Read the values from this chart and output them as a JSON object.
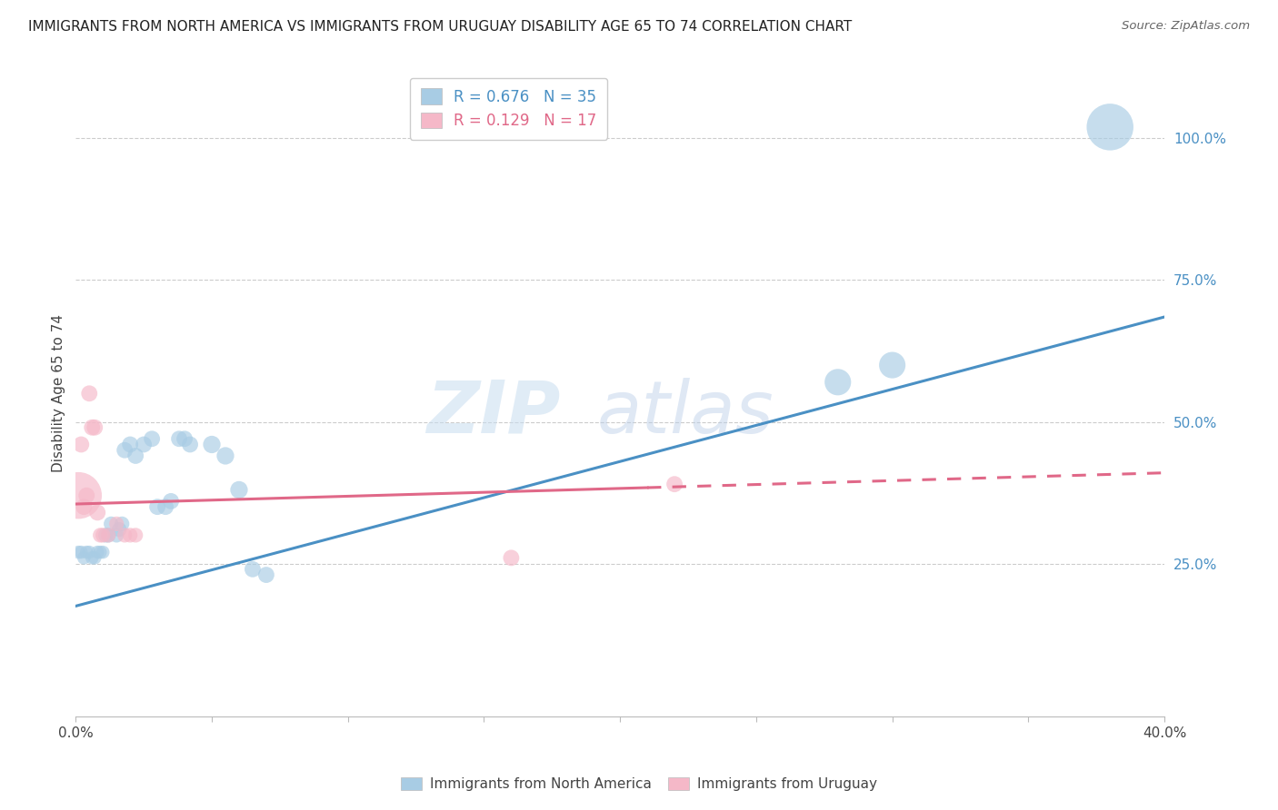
{
  "title": "IMMIGRANTS FROM NORTH AMERICA VS IMMIGRANTS FROM URUGUAY DISABILITY AGE 65 TO 74 CORRELATION CHART",
  "source": "Source: ZipAtlas.com",
  "ylabel": "Disability Age 65 to 74",
  "xlim": [
    0.0,
    0.4
  ],
  "ylim": [
    -0.02,
    1.12
  ],
  "x_ticks": [
    0.0,
    0.05,
    0.1,
    0.15,
    0.2,
    0.25,
    0.3,
    0.35,
    0.4
  ],
  "x_tick_labels": [
    "0.0%",
    "",
    "",
    "",
    "",
    "",
    "",
    "",
    "40.0%"
  ],
  "y_ticks_right": [
    0.0,
    0.25,
    0.5,
    0.75,
    1.0
  ],
  "y_tick_labels_right": [
    "",
    "25.0%",
    "50.0%",
    "75.0%",
    "100.0%"
  ],
  "blue_R": 0.676,
  "blue_N": 35,
  "pink_R": 0.129,
  "pink_N": 17,
  "blue_color": "#a8cce4",
  "pink_color": "#f5b8c8",
  "blue_line_color": "#4a90c4",
  "pink_line_color": "#e06888",
  "legend_label_blue": "Immigrants from North America",
  "legend_label_pink": "Immigrants from Uruguay",
  "blue_scatter_x": [
    0.001,
    0.002,
    0.003,
    0.004,
    0.005,
    0.006,
    0.007,
    0.008,
    0.009,
    0.01,
    0.011,
    0.012,
    0.013,
    0.015,
    0.016,
    0.017,
    0.018,
    0.02,
    0.022,
    0.025,
    0.028,
    0.03,
    0.033,
    0.035,
    0.038,
    0.04,
    0.042,
    0.05,
    0.055,
    0.06,
    0.065,
    0.07,
    0.28,
    0.3,
    0.38
  ],
  "blue_scatter_y": [
    0.27,
    0.27,
    0.26,
    0.27,
    0.27,
    0.26,
    0.26,
    0.27,
    0.27,
    0.27,
    0.3,
    0.3,
    0.32,
    0.3,
    0.31,
    0.32,
    0.45,
    0.46,
    0.44,
    0.46,
    0.47,
    0.35,
    0.35,
    0.36,
    0.47,
    0.47,
    0.46,
    0.46,
    0.44,
    0.38,
    0.24,
    0.23,
    0.57,
    0.6,
    1.02
  ],
  "blue_scatter_size": [
    20,
    20,
    20,
    20,
    20,
    20,
    20,
    20,
    20,
    20,
    25,
    25,
    25,
    25,
    25,
    25,
    30,
    30,
    30,
    30,
    30,
    30,
    30,
    30,
    30,
    30,
    30,
    35,
    35,
    35,
    30,
    30,
    80,
    80,
    250
  ],
  "pink_scatter_x": [
    0.001,
    0.002,
    0.003,
    0.004,
    0.005,
    0.006,
    0.007,
    0.008,
    0.009,
    0.01,
    0.012,
    0.015,
    0.018,
    0.02,
    0.022,
    0.16,
    0.22
  ],
  "pink_scatter_y": [
    0.37,
    0.46,
    0.35,
    0.37,
    0.55,
    0.49,
    0.49,
    0.34,
    0.3,
    0.3,
    0.3,
    0.32,
    0.3,
    0.3,
    0.3,
    0.26,
    0.39
  ],
  "pink_scatter_size": [
    250,
    30,
    30,
    30,
    30,
    30,
    30,
    30,
    25,
    25,
    25,
    25,
    25,
    25,
    25,
    30,
    30
  ],
  "blue_trend_x": [
    0.0,
    0.4
  ],
  "blue_trend_y": [
    0.175,
    0.685
  ],
  "pink_trend_x": [
    0.0,
    0.4
  ],
  "pink_trend_y": [
    0.355,
    0.41
  ],
  "pink_trend_solid_end": 0.21,
  "background_color": "#ffffff",
  "grid_color": "#cccccc"
}
